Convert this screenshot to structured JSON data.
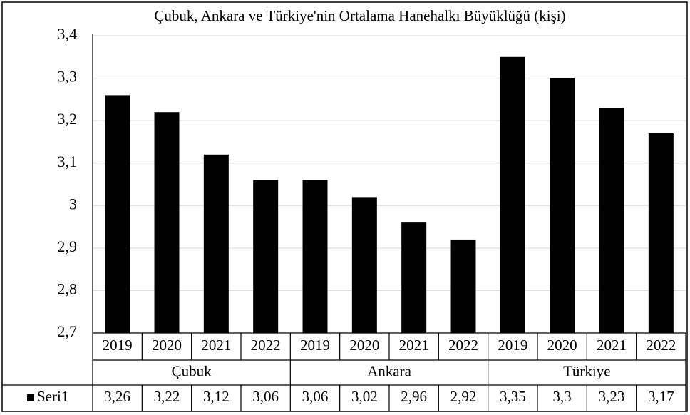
{
  "chart_data": {
    "type": "bar",
    "title": "Çubuk, Ankara ve Türkiye'nin Ortalama Hanehalkı Büyüklüğü (kişi)",
    "categories": [
      "2019",
      "2020",
      "2021",
      "2022",
      "2019",
      "2020",
      "2021",
      "2022",
      "2019",
      "2020",
      "2021",
      "2022"
    ],
    "groups": [
      "Çubuk",
      "Ankara",
      "Türkiye"
    ],
    "series": [
      {
        "name": "Seri1",
        "color": "#000000",
        "values": [
          3.26,
          3.22,
          3.12,
          3.06,
          3.06,
          3.02,
          2.96,
          2.92,
          3.35,
          3.3,
          3.23,
          3.17
        ],
        "value_labels": [
          "3,26",
          "3,22",
          "3,12",
          "3,06",
          "3,06",
          "3,02",
          "2,96",
          "2,92",
          "3,35",
          "3,3",
          "3,23",
          "3,17"
        ]
      }
    ],
    "ylim": [
      2.7,
      3.4
    ],
    "yticks": [
      {
        "value": 2.7,
        "label": "2,7"
      },
      {
        "value": 2.8,
        "label": "2,8"
      },
      {
        "value": 2.9,
        "label": "2,9"
      },
      3,
      {
        "value": 3.1,
        "label": "3,1"
      },
      {
        "value": 3.2,
        "label": "3,2"
      },
      {
        "value": 3.3,
        "label": "3,3"
      },
      {
        "value": 3.4,
        "label": "3,4"
      }
    ],
    "grid": true
  }
}
